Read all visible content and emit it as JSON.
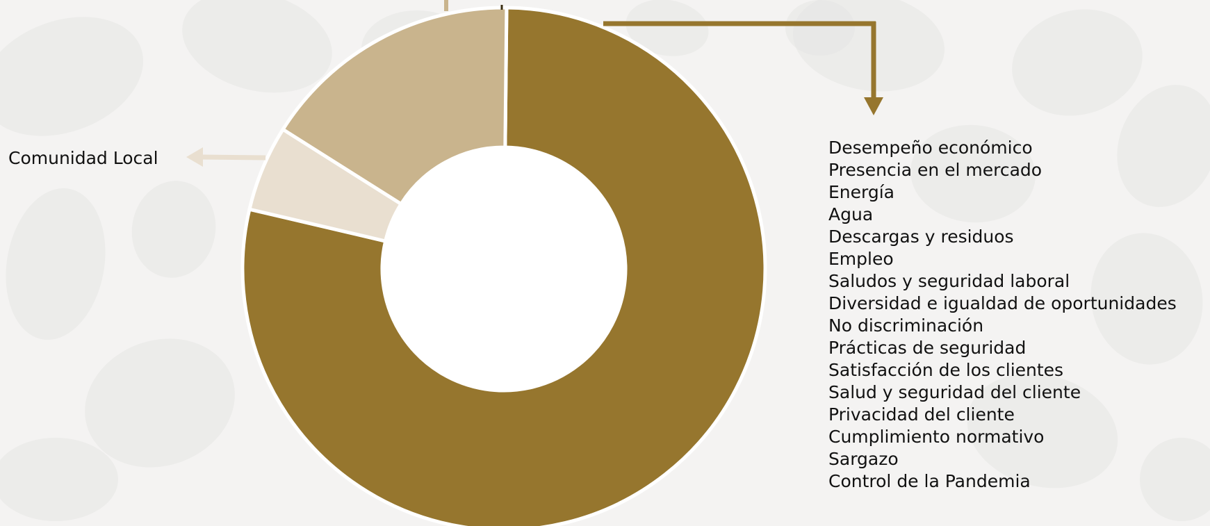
{
  "chart_data": {
    "type": "pie",
    "style": "donut",
    "slices": [
      {
        "label": "",
        "value": 78.5,
        "color": "#96762e"
      },
      {
        "label": "Comunidad Local",
        "value": 5.3,
        "color": "#e9dfd0"
      },
      {
        "label": "",
        "value": 16.2,
        "color": "#c9b48d"
      }
    ],
    "callouts": {
      "left_label": "Comunidad Local",
      "right_list": [
        "Desempeño económico",
        "Presencia en el mercado",
        "Energía",
        "Agua",
        "Descargas y residuos",
        "Empleo",
        "Saludos y seguridad laboral",
        "Diversidad e igualdad de oportunidades",
        "No discriminación",
        "Prácticas de seguridad",
        "Satisfacción de los clientes",
        "Salud y seguridad del cliente",
        "Privacidad del cliente",
        "Cumplimiento normativo",
        "Sargazo",
        "Control de la Pandemia"
      ]
    },
    "title": "",
    "legend": "none"
  },
  "colors": {
    "background": "#f4f3f2",
    "pattern": "#e6e5e3",
    "main_arrow": "#96762e",
    "light_arrow": "#e9dfd0",
    "mid_arrow": "#c9b48d"
  }
}
